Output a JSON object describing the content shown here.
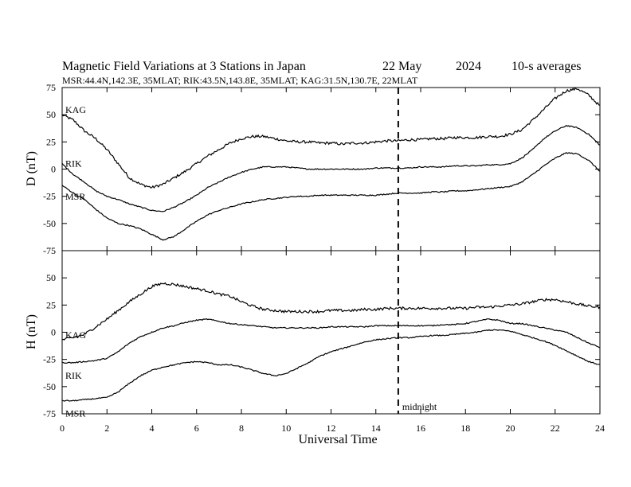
{
  "chart_data": {
    "type": "line",
    "title": "Magnetic Field Variations at 3 Stations in Japan",
    "date": "22 May",
    "year": "2024",
    "averaging": "10-s averages",
    "subtitle": "MSR:44.4N,142.3E, 35MLAT;  RIK:43.5N,143.8E, 35MLAT;  KAG:31.5N,130.7E, 22MLAT",
    "xlabel": "Universal Time",
    "xlim": [
      0,
      24
    ],
    "xticks": [
      0,
      2,
      4,
      6,
      8,
      10,
      12,
      14,
      16,
      18,
      20,
      22,
      24
    ],
    "grid": false,
    "annotation": {
      "x": 15,
      "label": "midnight",
      "style": "dashed"
    },
    "panels": [
      {
        "ylabel": "D (nT)",
        "ylim": [
          -75,
          75
        ],
        "yticks": [
          75,
          50,
          25,
          0,
          -25,
          -50,
          -75
        ],
        "series": [
          {
            "name": "KAG",
            "x": [
              0,
              0.5,
              1,
              1.5,
              2,
              2.5,
              3,
              3.5,
              4,
              4.5,
              5,
              5.5,
              6,
              6.5,
              7,
              7.5,
              8,
              8.5,
              9,
              9.5,
              10,
              10.5,
              11,
              11.5,
              12,
              12.5,
              13,
              13.5,
              14,
              14.5,
              15,
              15.5,
              16,
              16.5,
              17,
              17.5,
              18,
              18.5,
              19,
              19.5,
              20,
              20.5,
              21,
              21.5,
              22,
              22.5,
              23,
              23.5,
              24
            ],
            "y": [
              50,
              45,
              35,
              28,
              18,
              5,
              -8,
              -14,
              -17,
              -14,
              -8,
              -2,
              5,
              12,
              18,
              24,
              28,
              30,
              30,
              28,
              26,
              25,
              25,
              24,
              24,
              23,
              24,
              24,
              25,
              26,
              26,
              27,
              27,
              28,
              28,
              29,
              29,
              29,
              30,
              30,
              32,
              36,
              45,
              55,
              65,
              72,
              74,
              68,
              58
            ]
          },
          {
            "name": "RIK",
            "x": [
              0,
              0.5,
              1,
              1.5,
              2,
              2.5,
              3,
              3.5,
              4,
              4.5,
              5,
              5.5,
              6,
              6.5,
              7,
              7.5,
              8,
              8.5,
              9,
              9.5,
              10,
              10.5,
              11,
              11.5,
              12,
              12.5,
              13,
              13.5,
              14,
              14.5,
              15,
              15.5,
              16,
              16.5,
              17,
              17.5,
              18,
              18.5,
              19,
              19.5,
              20,
              20.5,
              21,
              21.5,
              22,
              22.5,
              23,
              23.5,
              24
            ],
            "y": [
              5,
              -5,
              -12,
              -20,
              -25,
              -28,
              -32,
              -35,
              -38,
              -39,
              -35,
              -30,
              -24,
              -17,
              -12,
              -7,
              -3,
              0,
              2,
              2,
              2,
              1,
              0,
              0,
              0,
              0,
              0,
              0,
              1,
              1,
              1,
              1,
              2,
              2,
              2,
              3,
              3,
              3,
              4,
              4,
              5,
              10,
              18,
              28,
              35,
              40,
              38,
              32,
              22
            ]
          },
          {
            "name": "MSR",
            "x": [
              0,
              0.5,
              1,
              1.5,
              2,
              2.5,
              3,
              3.5,
              4,
              4.5,
              5,
              5.5,
              6,
              6.5,
              7,
              7.5,
              8,
              8.5,
              9,
              9.5,
              10,
              10.5,
              11,
              11.5,
              12,
              12.5,
              13,
              13.5,
              14,
              14.5,
              15,
              15.5,
              16,
              16.5,
              17,
              17.5,
              18,
              18.5,
              19,
              19.5,
              20,
              20.5,
              21,
              21.5,
              22,
              22.5,
              23,
              23.5,
              24
            ],
            "y": [
              -15,
              -22,
              -28,
              -37,
              -45,
              -50,
              -52,
              -55,
              -60,
              -65,
              -62,
              -55,
              -48,
              -42,
              -38,
              -35,
              -32,
              -30,
              -28,
              -27,
              -26,
              -25,
              -25,
              -24,
              -24,
              -24,
              -24,
              -24,
              -24,
              -23,
              -22,
              -22,
              -22,
              -21,
              -21,
              -20,
              -20,
              -19,
              -18,
              -17,
              -16,
              -12,
              -5,
              3,
              10,
              15,
              14,
              8,
              -2
            ]
          }
        ]
      },
      {
        "ylabel": "H (nT)",
        "ylim": [
          -75,
          75
        ],
        "yticks": [
          75,
          50,
          25,
          0,
          -25,
          -50,
          -75
        ],
        "series": [
          {
            "name": "KAG",
            "x": [
              0,
              0.5,
              1,
              1.5,
              2,
              2.5,
              3,
              3.5,
              4,
              4.5,
              5,
              5.5,
              6,
              6.5,
              7,
              7.5,
              8,
              8.5,
              9,
              9.5,
              10,
              10.5,
              11,
              11.5,
              12,
              12.5,
              13,
              13.5,
              14,
              14.5,
              15,
              15.5,
              16,
              16.5,
              17,
              17.5,
              18,
              18.5,
              19,
              19.5,
              20,
              20.5,
              21,
              21.5,
              22,
              22.5,
              23,
              23.5,
              24
            ],
            "y": [
              -7,
              -5,
              -2,
              5,
              12,
              20,
              28,
              35,
              42,
              45,
              44,
              42,
              40,
              38,
              35,
              33,
              28,
              24,
              21,
              20,
              19,
              19,
              19,
              19,
              20,
              20,
              20,
              21,
              21,
              22,
              22,
              22,
              22,
              22,
              22,
              22,
              22,
              23,
              23,
              24,
              25,
              26,
              28,
              30,
              30,
              28,
              26,
              24,
              23
            ]
          },
          {
            "name": "RIK",
            "x": [
              0,
              0.5,
              1,
              1.5,
              2,
              2.5,
              3,
              3.5,
              4,
              4.5,
              5,
              5.5,
              6,
              6.5,
              7,
              7.5,
              8,
              8.5,
              9,
              9.5,
              10,
              10.5,
              11,
              11.5,
              12,
              12.5,
              13,
              13.5,
              14,
              14.5,
              15,
              15.5,
              16,
              16.5,
              17,
              17.5,
              18,
              18.5,
              19,
              19.5,
              20,
              20.5,
              21,
              21.5,
              22,
              22.5,
              23,
              23.5,
              24
            ],
            "y": [
              -28,
              -28,
              -27,
              -26,
              -24,
              -18,
              -10,
              -4,
              0,
              4,
              6,
              9,
              11,
              12,
              10,
              8,
              7,
              6,
              5,
              4,
              4,
              4,
              4,
              4,
              5,
              5,
              5,
              5,
              6,
              6,
              6,
              6,
              6,
              6,
              7,
              7,
              8,
              10,
              12,
              11,
              8,
              8,
              6,
              4,
              2,
              0,
              -5,
              -10,
              -14
            ]
          },
          {
            "name": "MSR",
            "x": [
              0,
              0.5,
              1,
              1.5,
              2,
              2.5,
              3,
              3.5,
              4,
              4.5,
              5,
              5.5,
              6,
              6.5,
              7,
              7.5,
              8,
              8.5,
              9,
              9.5,
              10,
              10.5,
              11,
              11.5,
              12,
              12.5,
              13,
              13.5,
              14,
              14.5,
              15,
              15.5,
              16,
              16.5,
              17,
              17.5,
              18,
              18.5,
              19,
              19.5,
              20,
              20.5,
              21,
              21.5,
              22,
              22.5,
              23,
              23.5,
              24
            ],
            "y": [
              -63,
              -63,
              -62,
              -61,
              -60,
              -55,
              -47,
              -40,
              -35,
              -32,
              -30,
              -28,
              -27,
              -28,
              -30,
              -30,
              -32,
              -35,
              -38,
              -40,
              -38,
              -33,
              -28,
              -22,
              -18,
              -15,
              -12,
              -9,
              -7,
              -6,
              -5,
              -5,
              -4,
              -3,
              -3,
              -2,
              -1,
              0,
              2,
              2,
              1,
              -2,
              -5,
              -8,
              -12,
              -17,
              -22,
              -27,
              -30
            ]
          }
        ]
      }
    ]
  }
}
